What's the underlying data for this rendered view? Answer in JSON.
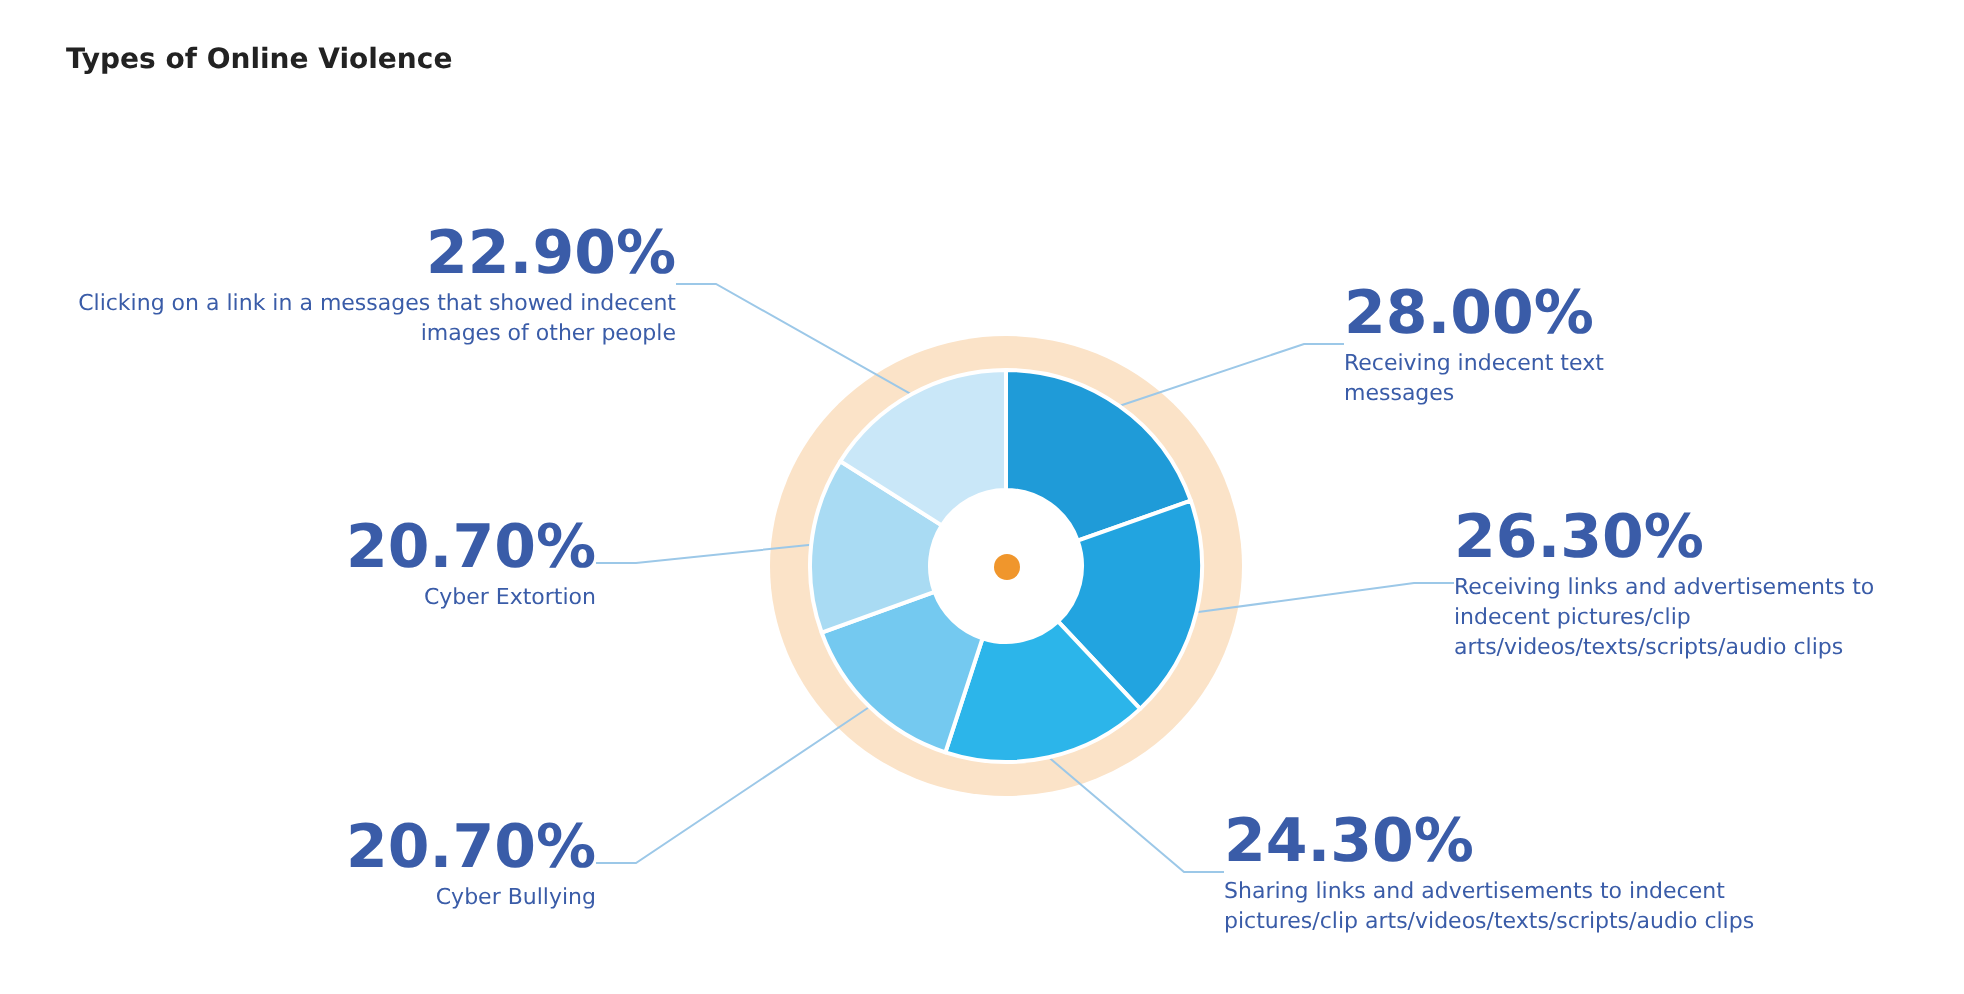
{
  "chart_data": {
    "type": "donut",
    "title": "Types of Online Violence",
    "categories": [
      "Receiving indecent text messages",
      "Receiving links and advertisements to indecent pictures/clip arts/videos/texts/scripts/audio clips",
      "Sharing links and advertisements to indecent pictures/clip arts/videos/texts/scripts/audio clips",
      "Cyber Bullying",
      "Cyber Extortion",
      "Clicking on a link in a messages that showed indecent images of other people"
    ],
    "values": [
      28,
      26.3,
      24.3,
      20.7,
      20.7,
      22.9
    ],
    "value_labels": [
      "28.00%",
      "26.30%",
      "24.30%",
      "20.70%",
      "20.70%",
      "22.90%"
    ],
    "colors": [
      "#1f9bd8",
      "#22a4e0",
      "#2cb5ea",
      "#74c9f0",
      "#a9dbf3",
      "#c9e7f8"
    ],
    "legend": false
  }
}
